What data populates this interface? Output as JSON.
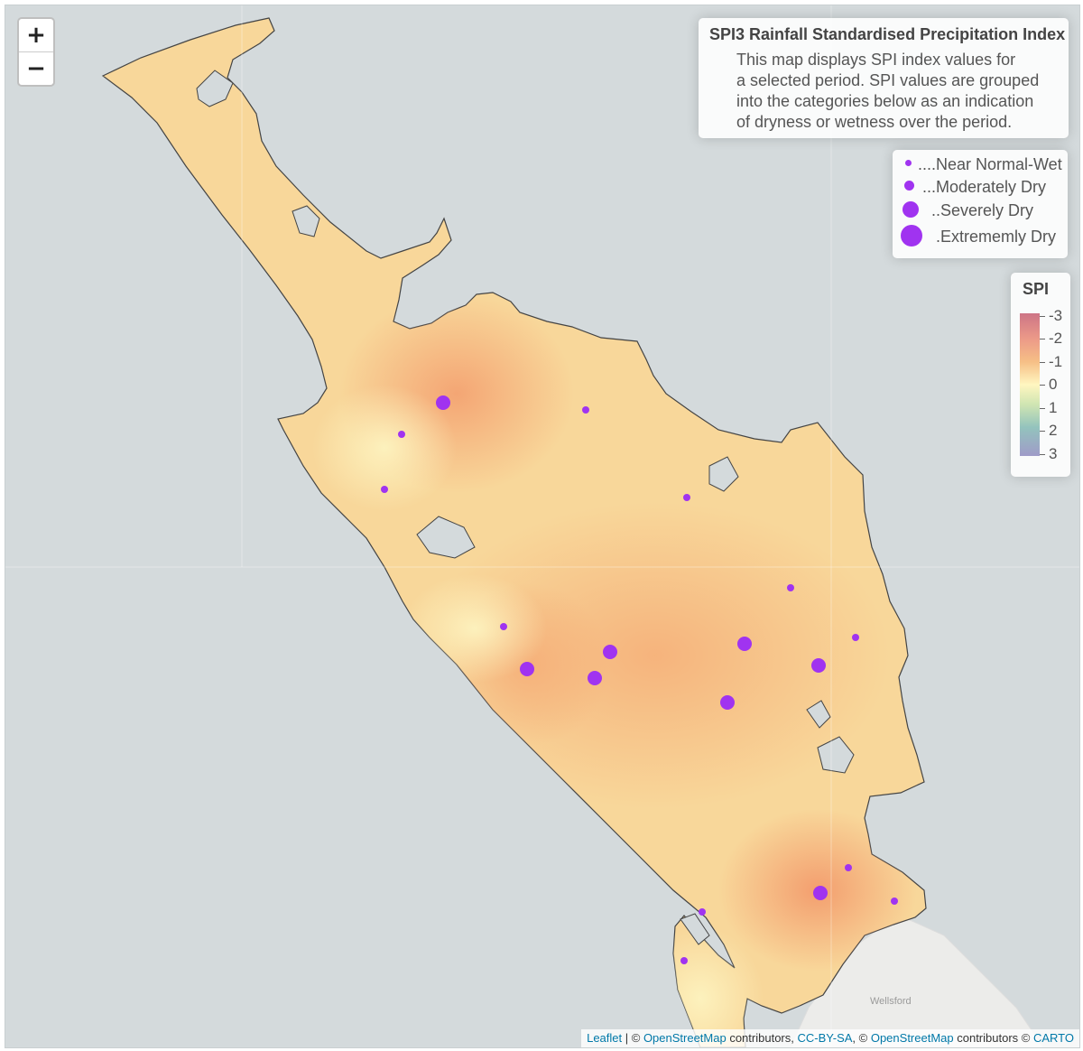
{
  "map": {
    "zoom_in_label": "+",
    "zoom_out_label": "−",
    "place_labels": [
      "Wellsford"
    ],
    "colors": {
      "ocean": "#d4dadc",
      "land_base": "#f8d79a",
      "neighbor_land": "#ececea",
      "station_marker": "#a033f0"
    }
  },
  "info_box": {
    "title": "SPI3 Rainfall Standardised Precipitation Index",
    "lines": [
      "This map displays SPI index values for",
      "a selected period. SPI values are grouped",
      "into the categories below as an indication",
      "of dryness or wetness over the period."
    ]
  },
  "size_legend": {
    "items": [
      {
        "label": "....Near Normal-Wet",
        "category": "near-normal-wet"
      },
      {
        "label": "...Moderately Dry",
        "category": "moderately-dry"
      },
      {
        "label": "..Severely Dry",
        "category": "severely-dry"
      },
      {
        "label": ".Extrememly Dry",
        "category": "extremely-dry"
      }
    ]
  },
  "spi_legend": {
    "title": "SPI",
    "labels": [
      "-3",
      "-2",
      "-1",
      "0",
      "1",
      "2",
      "3"
    ]
  },
  "attribution": {
    "leaflet": "Leaflet",
    "sep1": " | © ",
    "osm1": "OpenStreetMap",
    "contributors1": " contributors, ",
    "ccbysa": "CC-BY-SA",
    "sep2": ", © ",
    "osm2": "OpenStreetMap",
    "contributors2": " contributors © ",
    "carto": "CARTO"
  }
}
